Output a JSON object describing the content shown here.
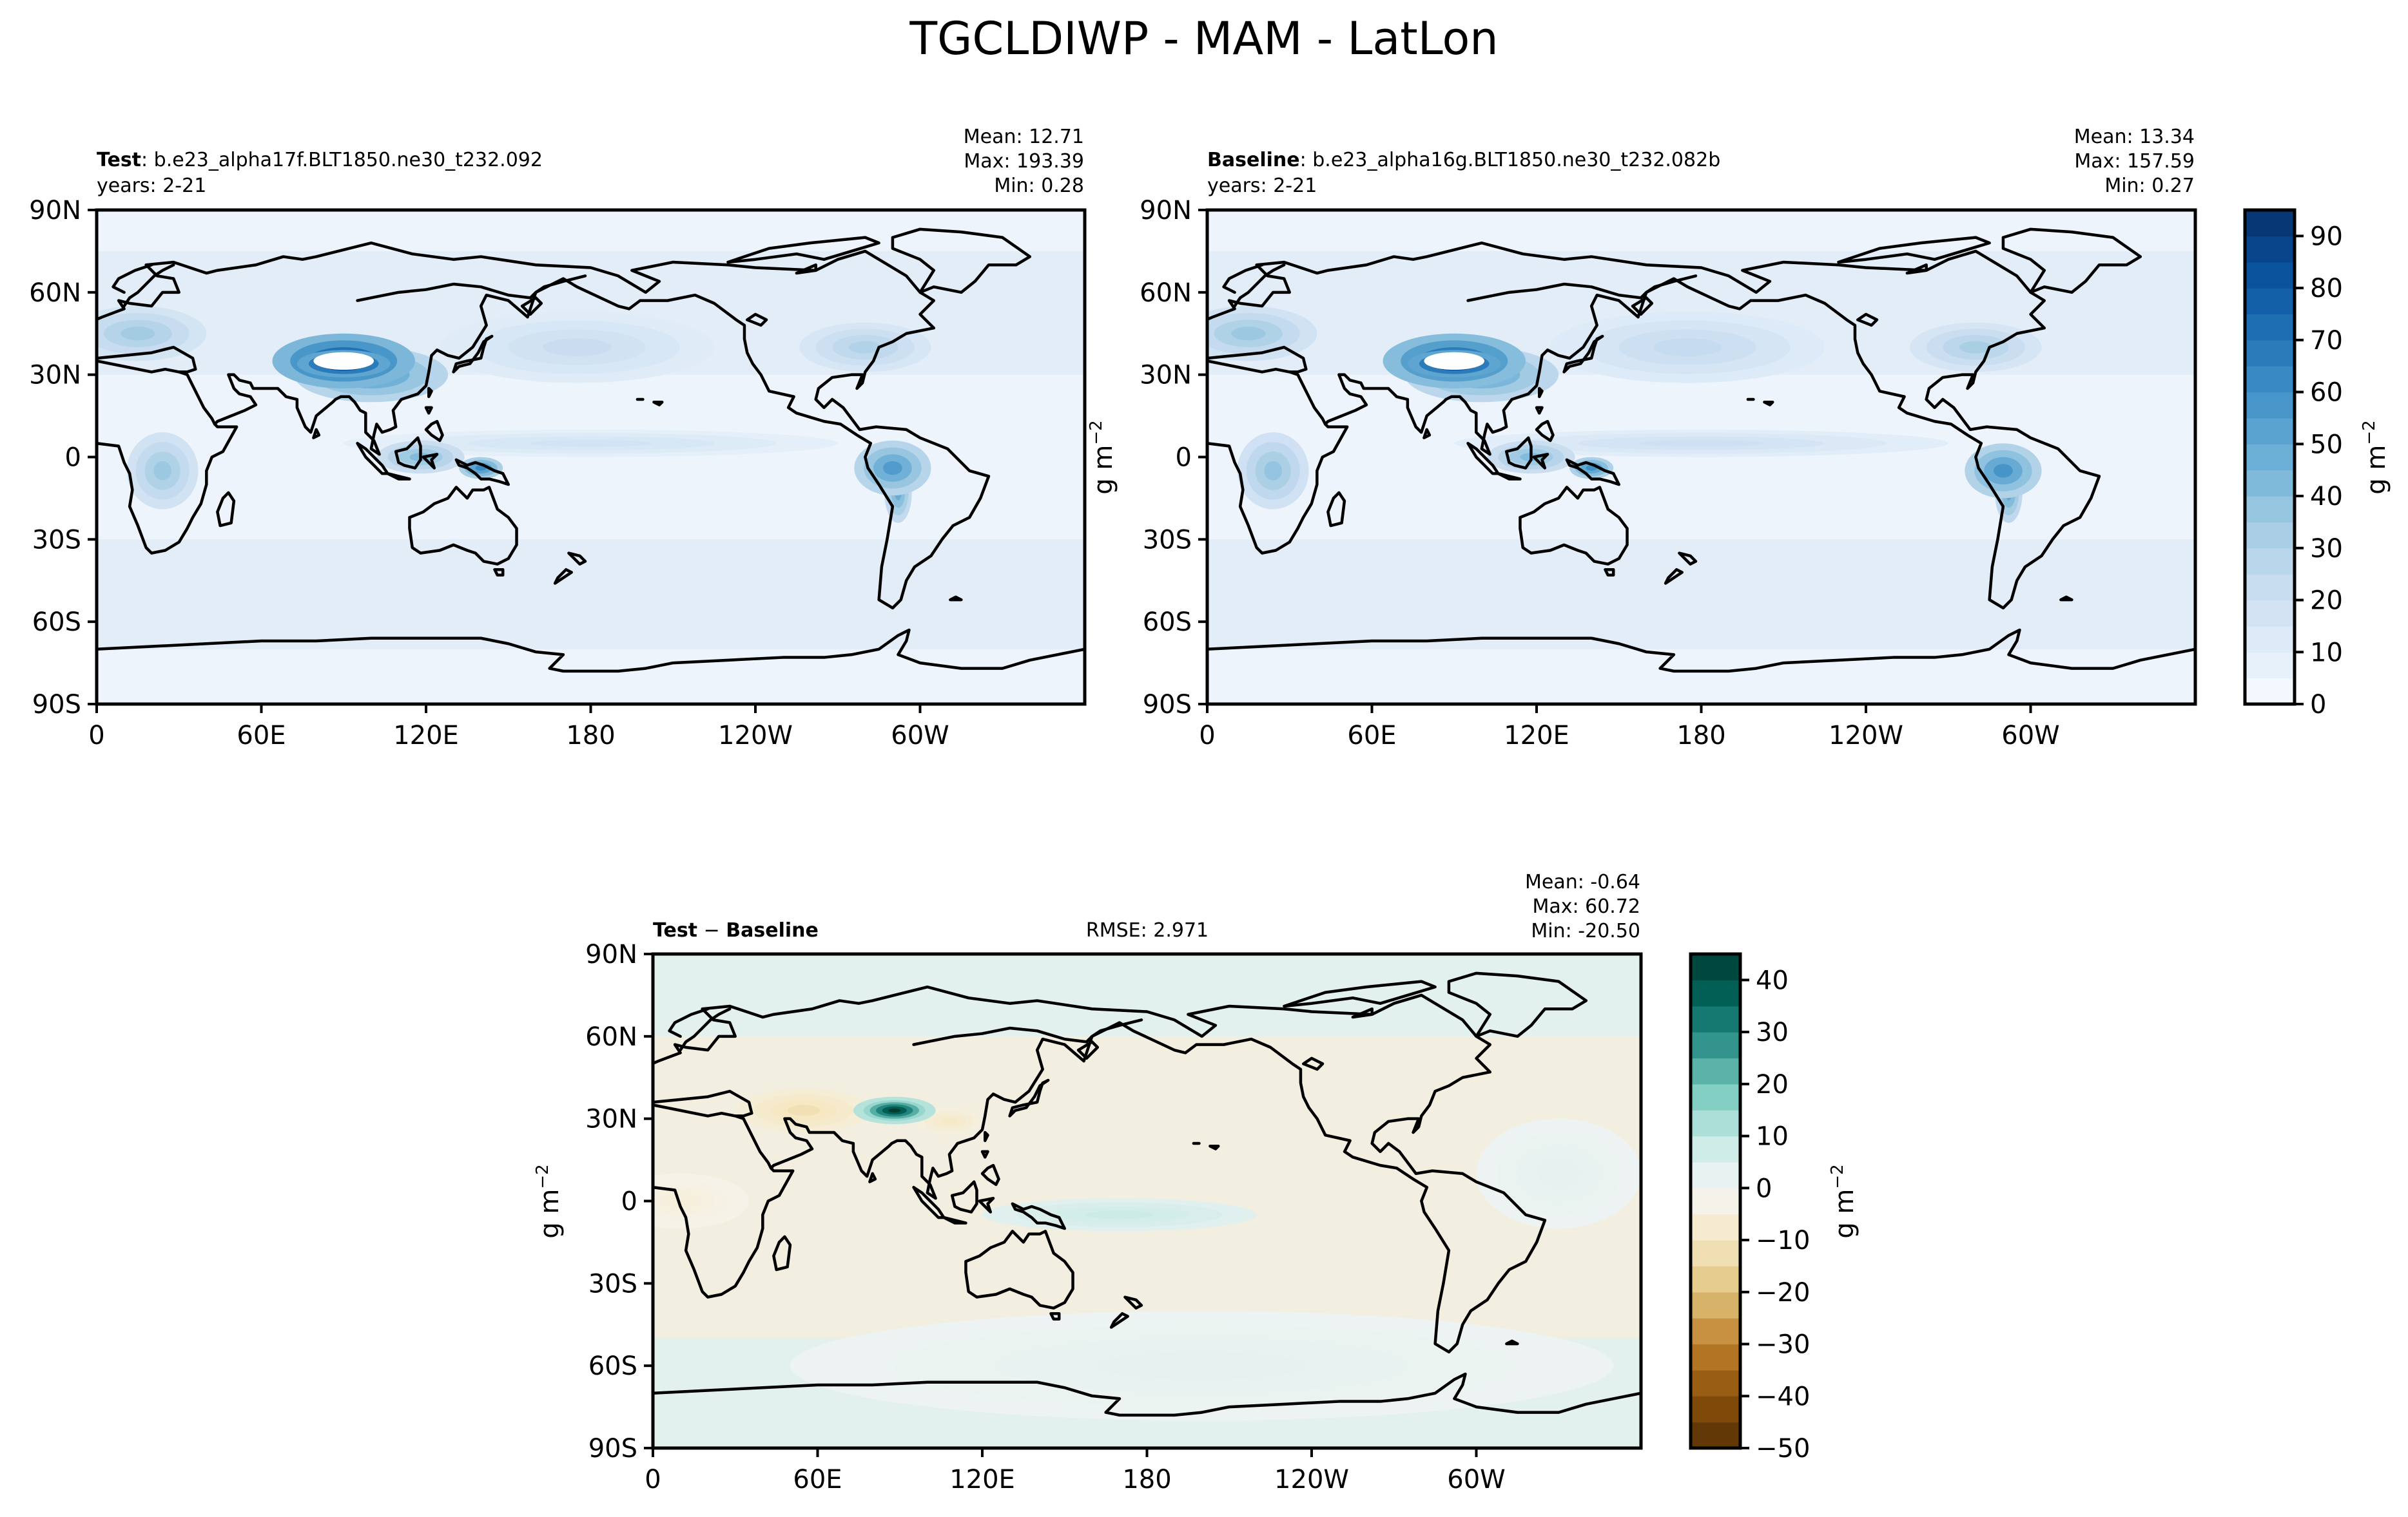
{
  "figure": {
    "title": "TGCLDIWP - MAM - LatLon"
  },
  "colors": {
    "ocean_blue_base": "#edf4fb",
    "land_blue_base": "#dde9f6",
    "diff_base": "#f3efe0",
    "diff_cool": "#e3f1ee"
  },
  "chart_data": [
    {
      "type": "heatmap",
      "panel": "test",
      "label_bold": "Test",
      "label_rest": ": b.e23_alpha17f.BLT1850.ne30_t232.092",
      "years": "years: 2-21",
      "stats": {
        "mean": "Mean: 12.71",
        "max": "Max: 193.39",
        "min": "Min:  0.28"
      },
      "xticks": [
        "0",
        "60E",
        "120E",
        "180",
        "120W",
        "60W"
      ],
      "yticks": [
        "90N",
        "60N",
        "30N",
        "0",
        "30S",
        "60S",
        "90S"
      ],
      "xlim": [
        0,
        360
      ],
      "ylim": [
        -90,
        90
      ],
      "colormap": "Blues",
      "blobs": [
        {
          "lon": 90,
          "lat": 35,
          "rx": 26,
          "ry": 10,
          "v": 85
        },
        {
          "lon": 90,
          "lat": 34,
          "rx": 17,
          "ry": 5,
          "v": 100
        },
        {
          "lon": 100,
          "lat": 30,
          "rx": 28,
          "ry": 10,
          "v": 55
        },
        {
          "lon": 140,
          "lat": -4,
          "rx": 8,
          "ry": 4,
          "v": 62
        },
        {
          "lon": 118,
          "lat": 0,
          "rx": 16,
          "ry": 6,
          "v": 42
        },
        {
          "lon": 290,
          "lat": -4,
          "rx": 14,
          "ry": 10,
          "v": 55
        },
        {
          "lon": 292,
          "lat": -13,
          "rx": 5,
          "ry": 11,
          "v": 48
        },
        {
          "lon": 24,
          "lat": -5,
          "rx": 13,
          "ry": 14,
          "v": 36
        },
        {
          "lon": 15,
          "lat": 45,
          "rx": 25,
          "ry": 10,
          "v": 34
        },
        {
          "lon": 280,
          "lat": 40,
          "rx": 24,
          "ry": 9,
          "v": 30
        },
        {
          "lon": 175,
          "lat": 40,
          "rx": 50,
          "ry": 13,
          "v": 22
        },
        {
          "lon": 180,
          "lat": 5,
          "rx": 90,
          "ry": 5,
          "v": 18
        }
      ]
    },
    {
      "type": "heatmap",
      "panel": "baseline",
      "label_bold": "Baseline",
      "label_rest": ": b.e23_alpha16g.BLT1850.ne30_t232.082b",
      "years": "years: 2-21",
      "stats": {
        "mean": "Mean: 13.34",
        "max": "Max: 157.59",
        "min": "Min:  0.27"
      },
      "xticks": [
        "0",
        "60E",
        "120E",
        "180",
        "120W",
        "60W"
      ],
      "yticks": [
        "90N",
        "60N",
        "30N",
        "0",
        "30S",
        "60S",
        "90S"
      ],
      "xlim": [
        0,
        360
      ],
      "ylim": [
        -90,
        90
      ],
      "colormap": "Blues",
      "blobs": [
        {
          "lon": 90,
          "lat": 35,
          "rx": 26,
          "ry": 10,
          "v": 80
        },
        {
          "lon": 90,
          "lat": 34,
          "rx": 17,
          "ry": 5,
          "v": 100
        },
        {
          "lon": 100,
          "lat": 30,
          "rx": 28,
          "ry": 10,
          "v": 52
        },
        {
          "lon": 140,
          "lat": -4,
          "rx": 8,
          "ry": 4,
          "v": 60
        },
        {
          "lon": 118,
          "lat": 0,
          "rx": 16,
          "ry": 6,
          "v": 42
        },
        {
          "lon": 290,
          "lat": -5,
          "rx": 14,
          "ry": 10,
          "v": 58
        },
        {
          "lon": 292,
          "lat": -13,
          "rx": 5,
          "ry": 11,
          "v": 50
        },
        {
          "lon": 24,
          "lat": -5,
          "rx": 13,
          "ry": 14,
          "v": 38
        },
        {
          "lon": 15,
          "lat": 45,
          "rx": 25,
          "ry": 10,
          "v": 36
        },
        {
          "lon": 280,
          "lat": 40,
          "rx": 24,
          "ry": 9,
          "v": 32
        },
        {
          "lon": 175,
          "lat": 40,
          "rx": 50,
          "ry": 13,
          "v": 24
        },
        {
          "lon": 180,
          "lat": 5,
          "rx": 90,
          "ry": 5,
          "v": 20
        }
      ]
    },
    {
      "type": "heatmap",
      "panel": "difference",
      "label_bold": "Test",
      "label_mid": " − ",
      "label_bold2": "Baseline",
      "rmse": "RMSE: 2.971",
      "stats": {
        "mean": "Mean: -0.64",
        "max": "Max: 60.72",
        "min": "Min: -20.50"
      },
      "xticks": [
        "0",
        "60E",
        "120E",
        "180",
        "120W",
        "60W"
      ],
      "yticks": [
        "90N",
        "60N",
        "30N",
        "0",
        "30S",
        "60S",
        "90S"
      ],
      "xlim": [
        0,
        360
      ],
      "ylim": [
        -90,
        90
      ],
      "colormap": "BrBG",
      "blobs": [
        {
          "lon": 88,
          "lat": 33,
          "rx": 9,
          "ry": 3,
          "v": 45
        },
        {
          "lon": 88,
          "lat": 33,
          "rx": 15,
          "ry": 5,
          "v": 22
        },
        {
          "lon": 55,
          "lat": 33,
          "rx": 24,
          "ry": 8,
          "v": -12
        },
        {
          "lon": 108,
          "lat": 29,
          "rx": 12,
          "ry": 5,
          "v": -9
        },
        {
          "lon": 170,
          "lat": -5,
          "rx": 50,
          "ry": 6,
          "v": 8
        },
        {
          "lon": 330,
          "lat": 10,
          "rx": 30,
          "ry": 20,
          "v": 3
        },
        {
          "lon": 10,
          "lat": 0,
          "rx": 25,
          "ry": 10,
          "v": -5
        },
        {
          "lon": 200,
          "lat": -60,
          "rx": 150,
          "ry": 20,
          "v": 3
        }
      ]
    }
  ],
  "colorbars": {
    "blues": {
      "ticks": [
        "0",
        "10",
        "20",
        "30",
        "40",
        "50",
        "60",
        "70",
        "80",
        "90"
      ],
      "vmin": 0,
      "vmax": 95,
      "unit": "g m",
      "unit_sup": "−2",
      "levels": 19
    },
    "diff": {
      "ticks": [
        "−50",
        "−40",
        "−30",
        "−20",
        "−10",
        "0",
        "10",
        "20",
        "30",
        "40"
      ],
      "vmin": -50,
      "vmax": 45,
      "unit": "g m",
      "unit_sup": "−2",
      "levels": 19
    }
  },
  "axis_unit": {
    "text": "g m",
    "sup": "−2"
  }
}
